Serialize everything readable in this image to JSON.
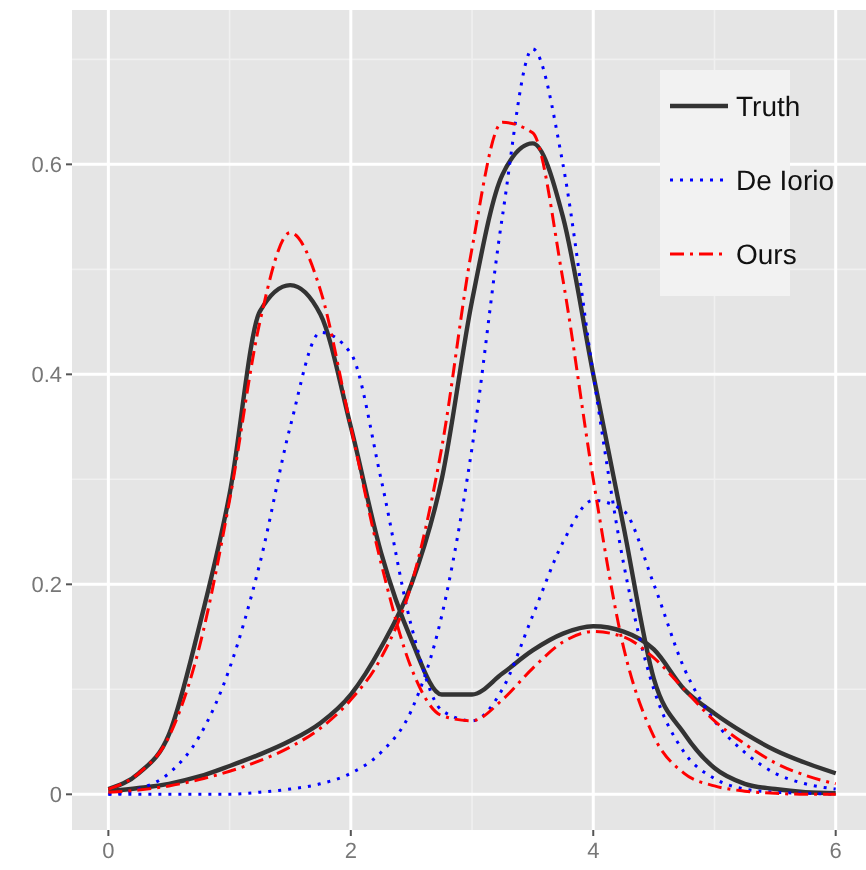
{
  "chart_data": {
    "type": "line",
    "x": [
      0,
      0.25,
      0.5,
      0.75,
      1,
      1.25,
      1.5,
      1.75,
      2,
      2.25,
      2.5,
      2.75,
      3,
      3.25,
      3.5,
      3.75,
      4,
      4.25,
      4.5,
      4.75,
      5,
      5.25,
      5.5,
      5.75,
      6
    ],
    "series": [
      {
        "name": "Truth",
        "color": "#333333",
        "line_style": "solid",
        "values": [
          0.005,
          0.02,
          0.057,
          0.16,
          0.286,
          0.46,
          0.485,
          0.457,
          0.35,
          0.23,
          0.147,
          0.095,
          0.095,
          0.115,
          0.137,
          0.153,
          0.16,
          0.155,
          0.138,
          0.1,
          0.077,
          0.058,
          0.042,
          0.03,
          0.02
        ]
      },
      {
        "color": "#333333",
        "line_style": "solid",
        "values": [
          0.003,
          0.006,
          0.01,
          0.017,
          0.027,
          0.038,
          0.051,
          0.068,
          0.095,
          0.14,
          0.2,
          0.3,
          0.47,
          0.59,
          0.62,
          0.55,
          0.4,
          0.255,
          0.11,
          0.058,
          0.025,
          0.01,
          0.005,
          0.002,
          0.001
        ]
      },
      {
        "name": "De Iorio",
        "color": "#0000ff",
        "line_style": "dotted",
        "values": [
          0,
          0.005,
          0.02,
          0.055,
          0.12,
          0.22,
          0.35,
          0.44,
          0.42,
          0.3,
          0.16,
          0.08,
          0.07,
          0.1,
          0.17,
          0.24,
          0.28,
          0.27,
          0.2,
          0.12,
          0.07,
          0.04,
          0.02,
          0.01,
          0.005
        ]
      },
      {
        "color": "#0000ff",
        "line_style": "dotted",
        "values": [
          0,
          0,
          0,
          0,
          0,
          0.002,
          0.005,
          0.01,
          0.02,
          0.04,
          0.08,
          0.17,
          0.33,
          0.55,
          0.71,
          0.6,
          0.4,
          0.22,
          0.1,
          0.04,
          0.015,
          0.005,
          0.002,
          0.001,
          0
        ]
      },
      {
        "name": "Ours",
        "color": "#ff0000",
        "line_style": "dashdot",
        "values": [
          0.005,
          0.02,
          0.055,
          0.14,
          0.28,
          0.45,
          0.535,
          0.48,
          0.35,
          0.22,
          0.12,
          0.075,
          0.07,
          0.09,
          0.12,
          0.145,
          0.155,
          0.15,
          0.13,
          0.1,
          0.07,
          0.048,
          0.03,
          0.018,
          0.01
        ]
      },
      {
        "color": "#ff0000",
        "line_style": "dashdot",
        "values": [
          0.002,
          0.004,
          0.008,
          0.014,
          0.022,
          0.032,
          0.045,
          0.063,
          0.09,
          0.13,
          0.2,
          0.33,
          0.52,
          0.64,
          0.63,
          0.49,
          0.3,
          0.14,
          0.055,
          0.02,
          0.008,
          0.003,
          0.001,
          0,
          0
        ]
      }
    ],
    "xlim": [
      -0.3,
      6.25
    ],
    "ylim": [
      -0.034,
      0.747
    ],
    "xticks": [
      0,
      2,
      4,
      6
    ],
    "yticks": [
      0,
      0.2,
      0.4,
      0.6
    ],
    "grid": true,
    "legend": "top right",
    "marker": "none"
  }
}
